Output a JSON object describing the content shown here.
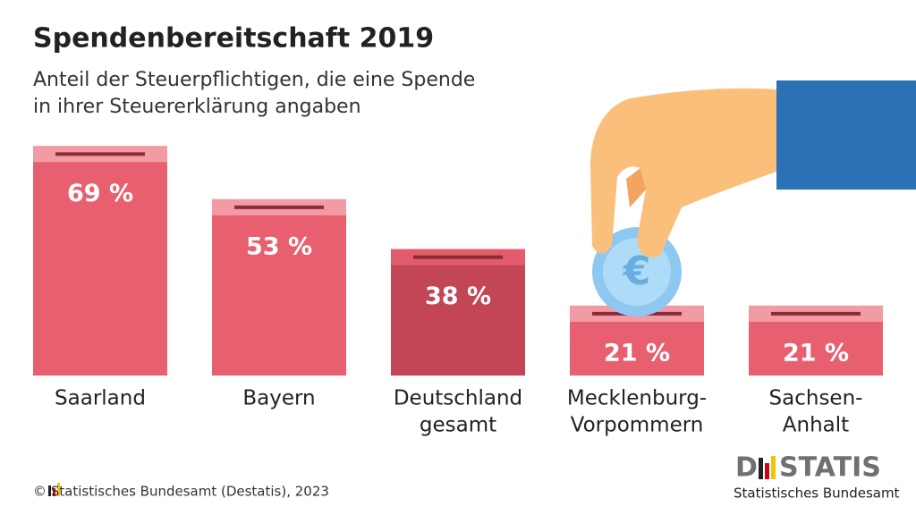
{
  "chart_data": {
    "type": "bar",
    "title": "Spendenbereitschaft 2019",
    "subtitle": [
      "Anteil der Steuerpflichtigen, die eine Spende",
      "in ihrer Steuererklärung angaben"
    ],
    "categories": [
      [
        "Saarland"
      ],
      [
        "Bayern"
      ],
      [
        "Deutschland",
        "gesamt"
      ],
      [
        "Mecklenburg-",
        "Vorpommern"
      ],
      [
        "Sachsen-",
        "Anhalt"
      ]
    ],
    "values": [
      69,
      53,
      38,
      21,
      21
    ],
    "value_labels": [
      "69 %",
      "53 %",
      "38 %",
      "21 %",
      "21 %"
    ],
    "colors": [
      "#e8606f",
      "#e8606f",
      "#c24656",
      "#e8606f",
      "#e8606f"
    ],
    "lid_colors": [
      "#f29ba5",
      "#f29ba5",
      "#e35c6b",
      "#f29ba5",
      "#f29ba5"
    ],
    "coin_symbol": "€",
    "source": "© Statistisches Bundesamt (Destatis), 2023",
    "logo": {
      "left": "D",
      "right": "STATIS",
      "sub": "Statistisches Bundesamt"
    }
  }
}
